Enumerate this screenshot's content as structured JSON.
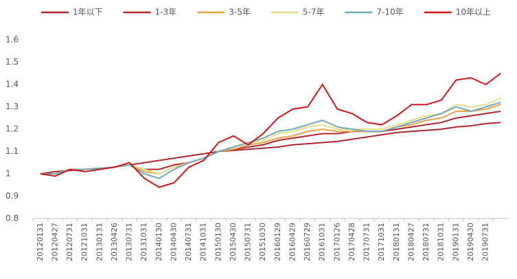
{
  "chart_data": {
    "type": "line",
    "categories": [
      "20120131",
      "20120427",
      "20120731",
      "20121031",
      "20130131",
      "20130426",
      "20130731",
      "20131031",
      "20140130",
      "20140430",
      "20140731",
      "20141031",
      "20150130",
      "20150430",
      "20150731",
      "20151030",
      "20160129",
      "20160429",
      "20160729",
      "20161031",
      "20170126",
      "20170428",
      "20170731",
      "20171031",
      "20180131",
      "20180427",
      "20180731",
      "20181031",
      "20190131",
      "20190430",
      "20190731",
      null
    ],
    "series": [
      {
        "name": "1年以下",
        "color": "#a8282e",
        "values": [
          1.0,
          1.01,
          1.015,
          1.02,
          1.025,
          1.03,
          1.04,
          1.05,
          1.06,
          1.07,
          1.08,
          1.09,
          1.1,
          1.105,
          1.11,
          1.115,
          1.12,
          1.13,
          1.135,
          1.14,
          1.145,
          1.155,
          1.165,
          1.175,
          1.185,
          1.19,
          1.195,
          1.2,
          1.21,
          1.215,
          1.225,
          1.23
        ]
      },
      {
        "name": "1-3年",
        "color": "#b3262b",
        "values": [
          1.0,
          1.0,
          1.02,
          1.02,
          1.025,
          1.03,
          1.04,
          1.02,
          1.02,
          1.04,
          1.05,
          1.07,
          1.1,
          1.11,
          1.12,
          1.13,
          1.15,
          1.16,
          1.17,
          1.18,
          1.18,
          1.19,
          1.19,
          1.19,
          1.2,
          1.21,
          1.22,
          1.23,
          1.25,
          1.26,
          1.27,
          1.28
        ]
      },
      {
        "name": "3-5年",
        "color": "#e6a347",
        "values": [
          1.0,
          1.0,
          1.02,
          1.02,
          1.025,
          1.03,
          1.04,
          1.01,
          1.0,
          1.03,
          1.05,
          1.07,
          1.1,
          1.11,
          1.13,
          1.14,
          1.16,
          1.17,
          1.19,
          1.2,
          1.19,
          1.19,
          1.19,
          1.19,
          1.21,
          1.22,
          1.24,
          1.25,
          1.28,
          1.28,
          1.29,
          1.31
        ]
      },
      {
        "name": "5-7年",
        "color": "#e3dc8c",
        "values": [
          1.0,
          1.0,
          1.02,
          1.02,
          1.025,
          1.03,
          1.04,
          1.02,
          1.0,
          1.03,
          1.05,
          1.07,
          1.1,
          1.12,
          1.14,
          1.15,
          1.18,
          1.19,
          1.21,
          1.22,
          1.2,
          1.2,
          1.2,
          1.2,
          1.22,
          1.24,
          1.26,
          1.27,
          1.31,
          1.3,
          1.31,
          1.34
        ]
      },
      {
        "name": "7-10年",
        "color": "#72aab3",
        "values": [
          1.0,
          1.0,
          1.02,
          1.02,
          1.025,
          1.03,
          1.04,
          1.0,
          0.98,
          1.02,
          1.05,
          1.07,
          1.1,
          1.12,
          1.14,
          1.16,
          1.19,
          1.2,
          1.22,
          1.24,
          1.21,
          1.2,
          1.19,
          1.19,
          1.21,
          1.23,
          1.25,
          1.27,
          1.3,
          1.28,
          1.3,
          1.32
        ]
      },
      {
        "name": "10年以上",
        "color": "#c8161d",
        "values": [
          1.0,
          0.99,
          1.02,
          1.01,
          1.02,
          1.03,
          1.05,
          0.98,
          0.94,
          0.96,
          1.03,
          1.06,
          1.14,
          1.17,
          1.13,
          1.18,
          1.25,
          1.29,
          1.3,
          1.4,
          1.29,
          1.27,
          1.23,
          1.22,
          1.26,
          1.31,
          1.31,
          1.33,
          1.42,
          1.43,
          1.4,
          1.45
        ]
      }
    ],
    "ylim": [
      0.8,
      1.6
    ],
    "yticks": [
      0.8,
      0.9,
      1,
      1.1,
      1.2,
      1.3,
      1.4,
      1.5,
      1.6
    ],
    "grid": false,
    "legend": "top"
  }
}
